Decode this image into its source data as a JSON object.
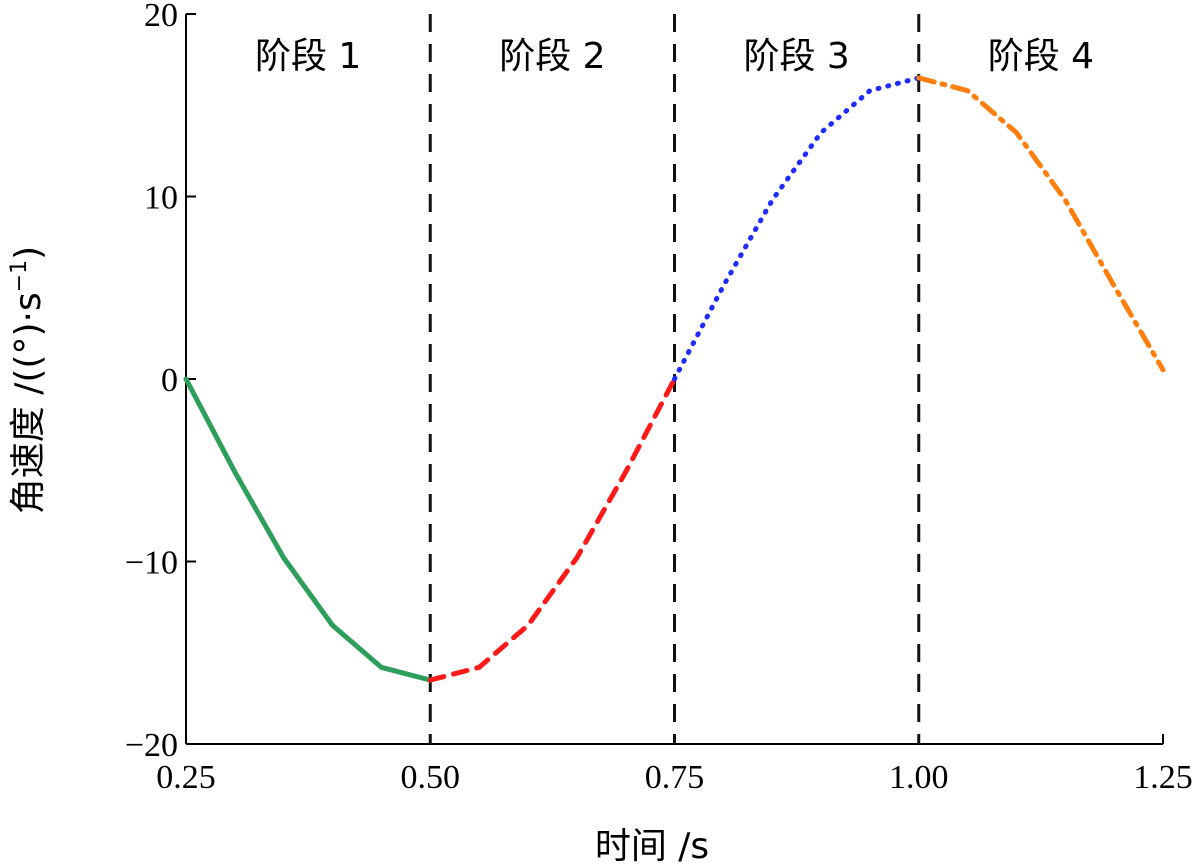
{
  "chart_data": {
    "type": "line",
    "title": "",
    "xlabel": "时间 /s",
    "ylabel_main": "角速度 /((°)·s",
    "ylabel_exp": "−1",
    "ylabel_close": ")",
    "xlim": [
      0.25,
      1.25
    ],
    "ylim": [
      -20,
      20
    ],
    "x_ticks": [
      0.25,
      0.5,
      0.75,
      1.0,
      1.25
    ],
    "x_tick_labels": [
      "0.25",
      "0.50",
      "0.75",
      "1.00",
      "1.25"
    ],
    "y_ticks": [
      -20,
      -10,
      0,
      10,
      20
    ],
    "y_tick_labels": [
      "−20",
      "−10",
      "0",
      "10",
      "20"
    ],
    "stage_boundaries": [
      0.5,
      0.75,
      1.0
    ],
    "stages": [
      "阶段 1",
      "阶段 2",
      "阶段 3",
      "阶段 4"
    ],
    "grid": false,
    "series": [
      {
        "color": "#2e9e5b",
        "style": "solid",
        "x": [
          0.25,
          0.3,
          0.35,
          0.4,
          0.45,
          0.5
        ],
        "y": [
          0.0,
          -5.1,
          -9.8,
          -13.5,
          -15.8,
          -16.5
        ]
      },
      {
        "color": "#ff1a1a",
        "style": "dashed",
        "x": [
          0.5,
          0.55,
          0.6,
          0.65,
          0.7,
          0.75
        ],
        "y": [
          -16.5,
          -15.8,
          -13.5,
          -9.8,
          -5.1,
          0.0
        ]
      },
      {
        "color": "#1f2bff",
        "style": "dotted",
        "x": [
          0.75,
          0.8,
          0.85,
          0.9,
          0.95,
          1.0
        ],
        "y": [
          0.0,
          5.1,
          9.8,
          13.5,
          15.8,
          16.5
        ]
      },
      {
        "color": "#ff7f0e",
        "style": "dashdot",
        "x": [
          1.0,
          1.05,
          1.1,
          1.15,
          1.2,
          1.25
        ],
        "y": [
          16.5,
          15.8,
          13.5,
          9.8,
          5.1,
          0.5
        ]
      }
    ]
  }
}
